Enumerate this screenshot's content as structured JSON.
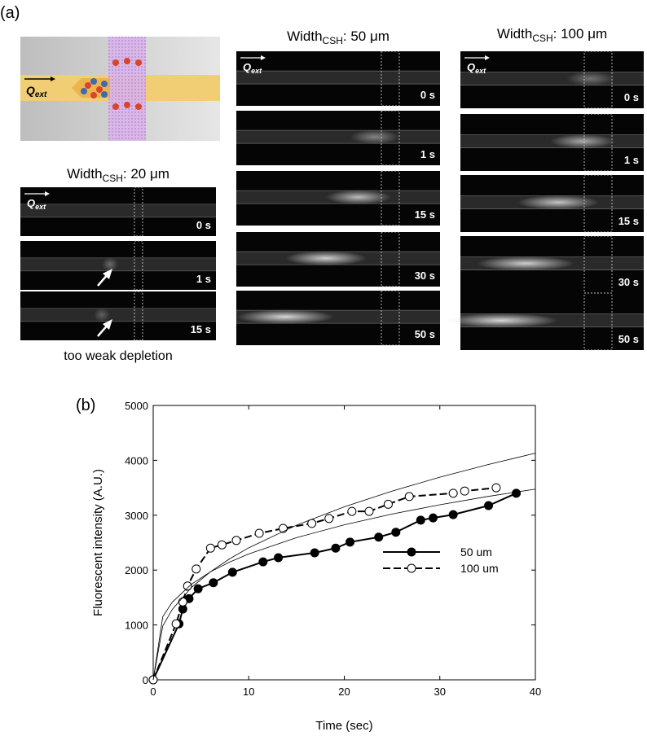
{
  "panel_a": {
    "label": "(a)",
    "q_label": {
      "main": "Q",
      "sub": "ext"
    },
    "columns": [
      {
        "heading": {
          "main": "Width",
          "sub": "CSH",
          "rest": ": 20 μm"
        },
        "frames": [
          "0 s",
          "1 s",
          "15 s"
        ]
      },
      {
        "heading": {
          "main": "Width",
          "sub": "CSH",
          "rest": ": 50 μm"
        },
        "frames": [
          "0 s",
          "1 s",
          "15 s",
          "30 s",
          "50 s"
        ]
      },
      {
        "heading": {
          "main": "Width",
          "sub": "CSH",
          "rest": ": 100 μm"
        },
        "frames": [
          "0 s",
          "1 s",
          "15 s",
          "30 s",
          "50 s"
        ]
      }
    ],
    "note": "too weak depletion"
  },
  "chart_data": {
    "type": "line",
    "panel_label": "(b)",
    "x_label": "Time (sec)",
    "y_label": "Fluorescent intensity (A.U.)",
    "xlim": [
      0,
      40
    ],
    "xticks": [
      0,
      10,
      20,
      30,
      40
    ],
    "ylim": [
      0,
      5000
    ],
    "yticks": [
      0,
      1000,
      2000,
      3000,
      4000,
      5000
    ],
    "legend": "right",
    "series": [
      {
        "name": "50 um",
        "color": "#000000",
        "marker": "filled",
        "dash": "solid",
        "x": [
          0,
          2.7,
          3.1,
          3.75,
          4.7,
          6.3,
          8.3,
          11.5,
          13.1,
          16.9,
          19.1,
          20.6,
          23.6,
          25.4,
          28,
          29.3,
          31.4,
          35.1,
          38
        ],
        "values": [
          0,
          1020,
          1290,
          1480,
          1660,
          1770,
          1960,
          2150,
          2225,
          2315,
          2400,
          2510,
          2600,
          2690,
          2910,
          2950,
          3010,
          3175,
          3400
        ]
      },
      {
        "name": "100 um",
        "color": "#000000",
        "marker": "open",
        "dash": "dashed",
        "x": [
          0,
          2.4,
          3.1,
          3.6,
          4.5,
          6,
          7.2,
          8.7,
          11.1,
          13.6,
          16.6,
          18.4,
          20.8,
          22.6,
          24.6,
          26.8,
          31.4,
          32.6,
          35.9
        ],
        "values": [
          0,
          1020,
          1420,
          1710,
          2020,
          2400,
          2460,
          2540,
          2670,
          2760,
          2850,
          2940,
          3070,
          3070,
          3200,
          3340,
          3400,
          3440,
          3500
        ]
      },
      {
        "color": "#000000",
        "marker": "none",
        "dash": "thin",
        "x": [
          0,
          1,
          2,
          4,
          6,
          8,
          10,
          15,
          20,
          25,
          30,
          35,
          40
        ],
        "values": [
          0,
          980,
          1284,
          1683,
          1971,
          2205,
          2406,
          2818,
          3152,
          3439,
          3692,
          3921,
          4130
        ]
      },
      {
        "color": "#000000",
        "marker": "none",
        "dash": "thin",
        "x": [
          0,
          1,
          2,
          4,
          6,
          8,
          10,
          15,
          20,
          25,
          30,
          35,
          40
        ],
        "values": [
          0,
          1150,
          1416,
          1743,
          1969,
          2146,
          2294,
          2591,
          2825,
          3021,
          3190,
          3341,
          3475
        ]
      }
    ]
  }
}
